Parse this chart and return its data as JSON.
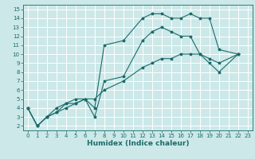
{
  "bg_color": "#cce8e8",
  "grid_color": "#ffffff",
  "line_color": "#1a6b6b",
  "xlabel": "Humidex (Indice chaleur)",
  "xlim": [
    -0.5,
    23.5
  ],
  "ylim": [
    1.5,
    15.5
  ],
  "xticks": [
    0,
    1,
    2,
    3,
    4,
    5,
    6,
    7,
    8,
    9,
    10,
    11,
    12,
    13,
    14,
    15,
    16,
    17,
    18,
    19,
    20,
    21,
    22,
    23
  ],
  "yticks": [
    2,
    3,
    4,
    5,
    6,
    7,
    8,
    9,
    10,
    11,
    12,
    13,
    14,
    15
  ],
  "curve1_x": [
    0,
    1,
    2,
    3,
    4,
    5,
    6,
    7,
    8,
    10,
    12,
    13,
    14,
    15,
    16,
    17,
    18,
    19,
    20,
    22
  ],
  "curve1_y": [
    4,
    2,
    3,
    4,
    4.5,
    5,
    5,
    4,
    11,
    11.5,
    14,
    14.5,
    14.5,
    14,
    14,
    14.5,
    14,
    14,
    10.5,
    10
  ],
  "curve2_x": [
    0,
    1,
    2,
    3,
    4,
    5,
    6,
    7,
    8,
    10,
    12,
    13,
    14,
    15,
    16,
    17,
    18,
    19,
    20,
    22
  ],
  "curve2_y": [
    4,
    2,
    3,
    3.5,
    4.5,
    4.5,
    5,
    3,
    7,
    7.5,
    11.5,
    12.5,
    13,
    12.5,
    12,
    12,
    10,
    9,
    8,
    10
  ],
  "curve3_x": [
    0,
    1,
    2,
    3,
    4,
    5,
    6,
    7,
    8,
    10,
    12,
    13,
    14,
    15,
    16,
    17,
    18,
    19,
    20,
    22
  ],
  "curve3_y": [
    4,
    2,
    3,
    3.5,
    4,
    4.5,
    5,
    5,
    6,
    7,
    8.5,
    9,
    9.5,
    9.5,
    10,
    10,
    10,
    9.5,
    9,
    10
  ],
  "marker_size": 2.5,
  "linewidth": 0.8,
  "tick_fontsize": 5.0,
  "label_fontsize": 6.5
}
